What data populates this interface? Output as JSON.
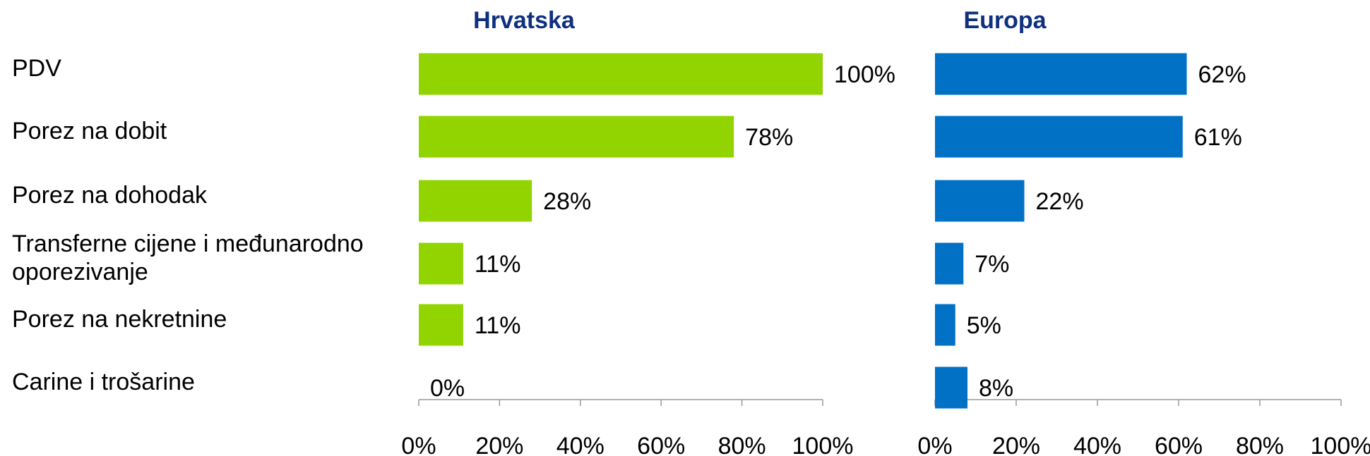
{
  "chart_data": [
    {
      "type": "bar",
      "title": "Hrvatska",
      "categories": [
        "PDV",
        "Porez na dobit",
        "Porez na dohodak",
        "Transferne cijene i međunarodno oporezivanje",
        "Porez na nekretnine",
        "Carine i trošarine"
      ],
      "values": [
        100,
        78,
        28,
        11,
        11,
        0
      ],
      "value_labels": [
        "100%",
        "78%",
        "28%",
        "11%",
        "11%",
        "0%"
      ],
      "color": "#92d400",
      "xlim": [
        0,
        100
      ],
      "xticks": [
        {
          "value": 0,
          "label": "0%"
        },
        {
          "value": 20,
          "label": "20%"
        },
        {
          "value": 40,
          "label": "40%"
        },
        {
          "value": 60,
          "label": "60%"
        },
        {
          "value": 80,
          "label": "80%"
        },
        {
          "value": 100,
          "label": "100%"
        }
      ]
    },
    {
      "type": "bar",
      "title": "Europa",
      "values": [
        62,
        61,
        22,
        7,
        5,
        8
      ],
      "value_labels": [
        "62%",
        "61%",
        "22%",
        "7%",
        "5%",
        "8%"
      ],
      "color": "#0071c5",
      "xlim": [
        0,
        100
      ],
      "xticks": [
        {
          "value": 0,
          "label": "0%"
        },
        {
          "value": 20,
          "label": "20%"
        },
        {
          "value": 40,
          "label": "40%"
        },
        {
          "value": 60,
          "label": "60%"
        },
        {
          "value": 80,
          "label": "80%"
        },
        {
          "value": 100,
          "label": "100%"
        }
      ]
    }
  ]
}
